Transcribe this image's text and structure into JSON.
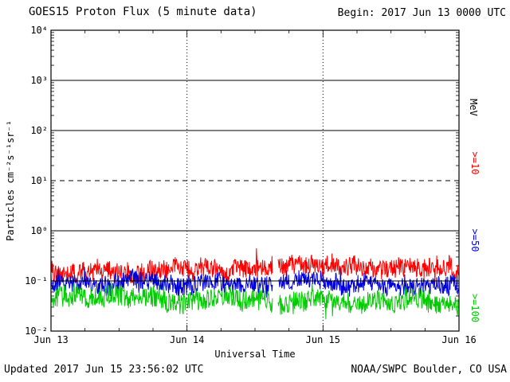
{
  "footer": {
    "updated": "Updated 2017 Jun 15 23:56:02 UTC",
    "source": "NOAA/SWPC Boulder, CO USA"
  },
  "chart_data": {
    "type": "line",
    "title": "GOES15 Proton Flux (5 minute data)",
    "begin_label": "Begin: 2017 Jun 13 0000 UTC",
    "xlabel": "Universal Time",
    "ylabel": "Particles cm⁻²s⁻¹sr⁻¹",
    "right_axis_label": "MeV",
    "y_scale": "log",
    "ylim": [
      0.01,
      10000
    ],
    "y_tick_labels": [
      "10⁴",
      "10³",
      "10²",
      "10¹",
      "10⁰",
      "10⁻¹",
      "10⁻²"
    ],
    "x_ticks": [
      {
        "label": "Jun 13",
        "day": 0
      },
      {
        "label": "Jun 14",
        "day": 1
      },
      {
        "label": "Jun 15",
        "day": 2
      },
      {
        "label": "Jun 16",
        "day": 3
      }
    ],
    "grid": {
      "h_solid_values": [
        1000,
        100,
        1,
        0.1
      ],
      "h_dashed_values": [
        10
      ],
      "v_dotted_days": [
        1,
        2
      ]
    },
    "duration_days": 3,
    "sampling_minutes": 5,
    "data_gaps_days": [
      [
        1.63,
        1.67
      ]
    ],
    "series": [
      {
        "name": ">=10",
        "color": "#ff0000",
        "median_flux": 0.17,
        "flux_range": [
          0.09,
          0.42
        ],
        "seed": 101
      },
      {
        "name": ">=50",
        "color": "#0000dd",
        "median_flux": 0.095,
        "flux_range": [
          0.05,
          0.21
        ],
        "seed": 202
      },
      {
        "name": ">=100",
        "color": "#00cc00",
        "median_flux": 0.042,
        "flux_range": [
          0.018,
          0.09
        ],
        "seed": 303
      }
    ]
  }
}
